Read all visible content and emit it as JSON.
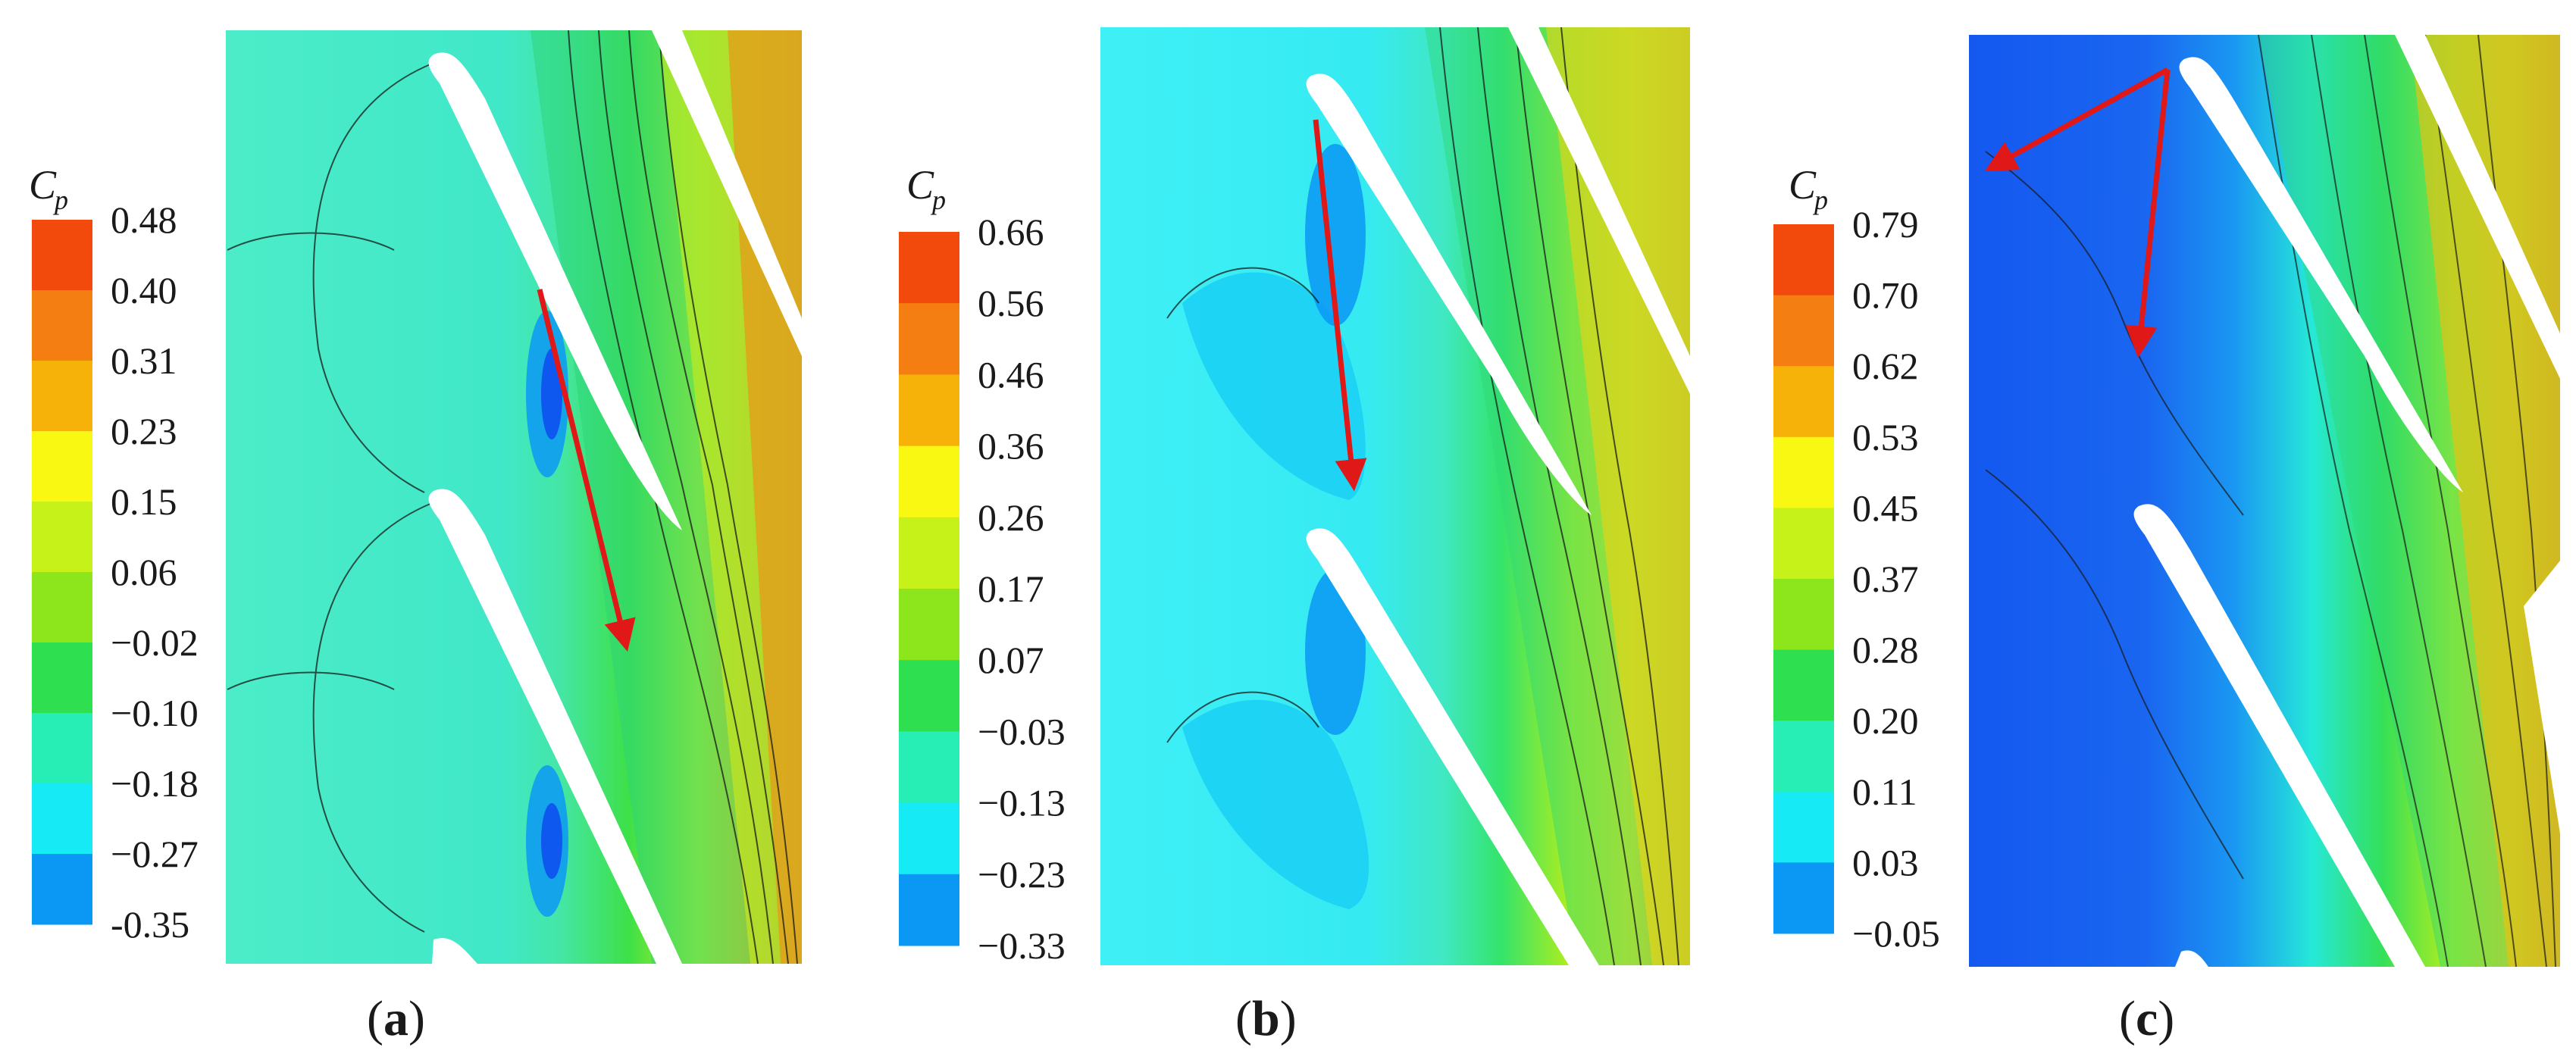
{
  "chart_data": [
    {
      "type": "heatmap",
      "panel": "(a)",
      "panel_open": "(",
      "panel_letter": "a",
      "panel_close": ")",
      "colorbar_title": "C",
      "colorbar_subscript": "p",
      "colorbar_ticks": [
        "0.48",
        "0.40",
        "0.31",
        "0.23",
        "0.15",
        "0.06",
        "−0.02",
        "−0.10",
        "−0.18",
        "−0.27",
        "-0.35"
      ],
      "colorbar_values": [
        0.48,
        0.4,
        0.31,
        0.23,
        0.15,
        0.06,
        -0.02,
        -0.1,
        -0.18,
        -0.27,
        -0.35
      ],
      "range": [
        -0.35,
        0.48
      ]
    },
    {
      "type": "heatmap",
      "panel": "(b)",
      "panel_open": "(",
      "panel_letter": "b",
      "panel_close": ")",
      "colorbar_title": "C",
      "colorbar_subscript": "p",
      "colorbar_ticks": [
        "0.66",
        "0.56",
        "0.46",
        "0.36",
        "0.26",
        "0.17",
        "0.07",
        "−0.03",
        "−0.13",
        "−0.23",
        "−0.33"
      ],
      "colorbar_values": [
        0.66,
        0.56,
        0.46,
        0.36,
        0.26,
        0.17,
        0.07,
        -0.03,
        -0.13,
        -0.23,
        -0.33
      ],
      "range": [
        -0.33,
        0.66
      ]
    },
    {
      "type": "heatmap",
      "panel": "(c)",
      "panel_open": "(",
      "panel_letter": "c",
      "panel_close": ")",
      "colorbar_title": "C",
      "colorbar_subscript": "p",
      "colorbar_ticks": [
        "0.79",
        "0.70",
        "0.62",
        "0.53",
        "0.45",
        "0.37",
        "0.28",
        "0.20",
        "0.11",
        "0.03",
        "−0.05"
      ],
      "colorbar_values": [
        0.79,
        0.7,
        0.62,
        0.53,
        0.45,
        0.37,
        0.28,
        0.2,
        0.11,
        0.03,
        -0.05
      ],
      "range": [
        -0.05,
        0.79
      ]
    }
  ],
  "colors": {
    "levels": [
      "#1050f0",
      "#0a98f4",
      "#16eaf4",
      "#26eeb4",
      "#2ee050",
      "#8de61c",
      "#c6f21a",
      "#f8f812",
      "#f6b208",
      "#f47e12",
      "#f24a0c"
    ],
    "arrow": "#e01818",
    "blade": "#ffffff",
    "isoline": "#1a1a1a"
  }
}
